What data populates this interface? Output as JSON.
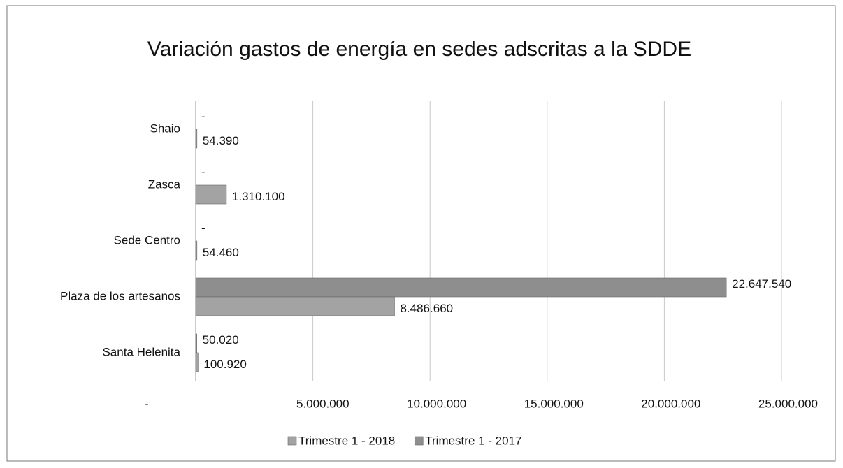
{
  "chart_data": {
    "type": "bar",
    "orientation": "horizontal",
    "title": "Variación gastos de energía en sedes adscritas a la SDDE",
    "categories": [
      "Shaio",
      "Zasca",
      "Sede Centro",
      "Plaza de los artesanos",
      "Santa Helenita"
    ],
    "series": [
      {
        "name": "Trimestre 1 - 2018",
        "color": "#a3a3a3",
        "values": [
          54390,
          1310100,
          54460,
          8486660,
          100920
        ],
        "value_labels": [
          "54.390",
          "1.310.100",
          "54.460",
          "8.486.660",
          "100.920"
        ]
      },
      {
        "name": "Trimestre 1 - 2017",
        "color": "#8e8e8e",
        "values": [
          0,
          0,
          0,
          22647540,
          50020
        ],
        "value_labels": [
          "-",
          "-",
          "-",
          "22.647.540",
          "50.020"
        ]
      }
    ],
    "xlim": [
      0,
      25000000
    ],
    "xticks": [
      {
        "value": 0,
        "label": "-"
      },
      {
        "value": 5000000,
        "label": "5.000.000"
      },
      {
        "value": 10000000,
        "label": "10.000.000"
      },
      {
        "value": 15000000,
        "label": "15.000.000"
      },
      {
        "value": 20000000,
        "label": "20.000.000"
      },
      {
        "value": 25000000,
        "label": "25.000.000"
      }
    ],
    "grid": true,
    "legend": "bottom"
  }
}
